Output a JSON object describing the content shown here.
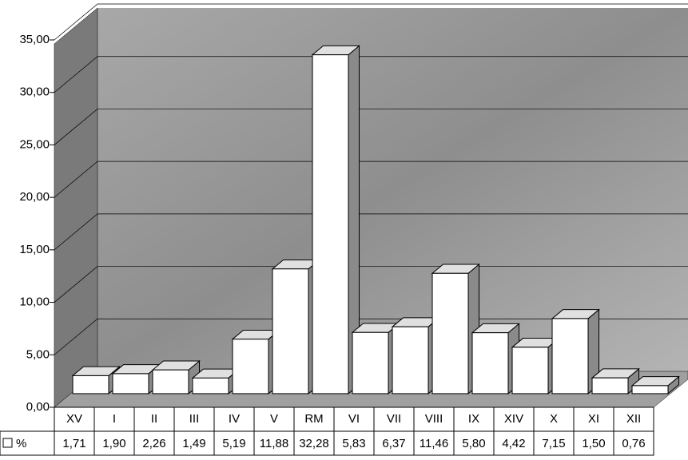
{
  "chart_data": {
    "type": "bar3d",
    "categories": [
      "XV",
      "I",
      "II",
      "III",
      "IV",
      "V",
      "RM",
      "VI",
      "VII",
      "VIII",
      "IX",
      "XIV",
      "X",
      "XI",
      "XII"
    ],
    "series": [
      {
        "name": "%",
        "color": "#ffffff",
        "values": [
          1.71,
          1.9,
          2.26,
          1.49,
          5.19,
          11.88,
          32.28,
          5.83,
          6.37,
          11.46,
          5.8,
          4.42,
          7.15,
          1.5,
          0.76
        ],
        "value_labels": [
          "1,71",
          "1,90",
          "2,26",
          "1,49",
          "5,19",
          "11,88",
          "32,28",
          "5,83",
          "6,37",
          "11,46",
          "5,80",
          "4,42",
          "7,15",
          "1,50",
          "0,76"
        ]
      }
    ],
    "ylim": [
      0,
      35
    ],
    "yticks": [
      {
        "value": 0,
        "label": "0,00"
      },
      {
        "value": 5,
        "label": "5,00"
      },
      {
        "value": 10,
        "label": "10,00"
      },
      {
        "value": 15,
        "label": "15,00"
      },
      {
        "value": 20,
        "label": "20,00"
      },
      {
        "value": 25,
        "label": "25,00"
      },
      {
        "value": 30,
        "label": "30,00"
      },
      {
        "value": 35,
        "label": "35,00"
      }
    ],
    "grid": true
  }
}
